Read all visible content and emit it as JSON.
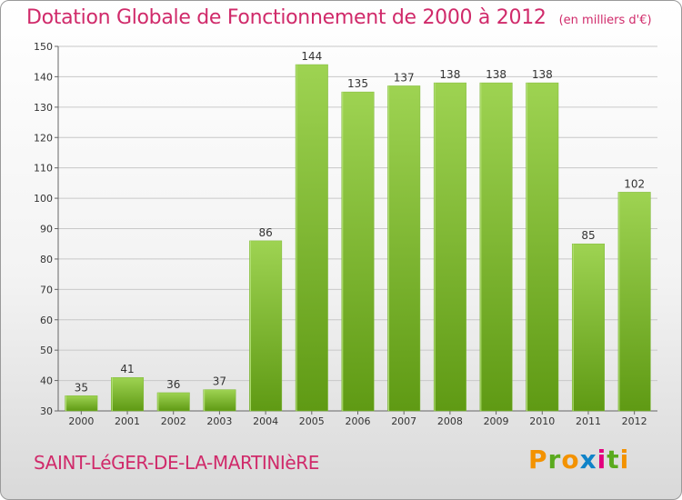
{
  "header": {
    "title": "Dotation Globale de Fonctionnement de 2000 à 2012",
    "subtitle": "(en milliers d'€)"
  },
  "footer": {
    "commune": "SAINT-LéGER-DE-LA-MARTINIèRE",
    "logo_letters": [
      "P",
      "r",
      "o",
      "x",
      "i",
      "t",
      "i"
    ],
    "logo_colors": [
      "#f39200",
      "#5aaa1e",
      "#f39200",
      "#0f83c8",
      "#e3007e",
      "#5aaa1e",
      "#f39200"
    ]
  },
  "colors": {
    "bar_light": "#9ed352",
    "bar_dark": "#5f9a14",
    "grid": "#c8c8c8",
    "axis": "#666666"
  },
  "chart_data": {
    "type": "bar",
    "categories": [
      "2000",
      "2001",
      "2002",
      "2003",
      "2004",
      "2005",
      "2006",
      "2007",
      "2008",
      "2009",
      "2010",
      "2011",
      "2012"
    ],
    "values": [
      35,
      41,
      36,
      37,
      86,
      144,
      135,
      137,
      138,
      138,
      138,
      85,
      102
    ],
    "ylim": [
      30,
      150
    ],
    "yticks": [
      30,
      40,
      50,
      60,
      70,
      80,
      90,
      100,
      110,
      120,
      130,
      140,
      150
    ],
    "grid": true,
    "legend": "none"
  }
}
